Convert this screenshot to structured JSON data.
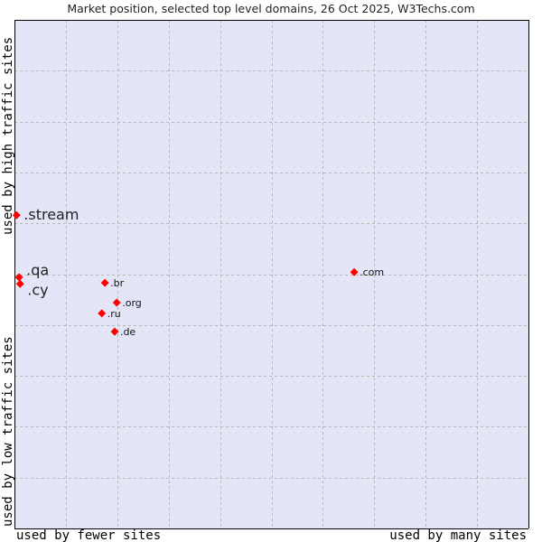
{
  "chart_data": {
    "type": "scatter",
    "title": "Market position, selected top level domains, 26 Oct 2025, W3Techs.com",
    "xlabel_left": "used by fewer sites",
    "xlabel_right": "used by many sites",
    "ylabel_bottom": "used by low traffic sites",
    "ylabel_top": "used by high traffic sites",
    "xlim": [
      0,
      100
    ],
    "ylim": [
      0,
      100
    ],
    "grid": true,
    "colors": {
      "plot_bg": "#e4e6f8",
      "point": "#ff0000"
    },
    "points": [
      {
        "label": ".stream",
        "x": 0.4,
        "y": 61.6,
        "emphasized": true
      },
      {
        "label": ".qa",
        "x": 0.9,
        "y": 49.4,
        "emphasized": true
      },
      {
        "label": ".cy",
        "x": 1.1,
        "y": 48.1,
        "emphasized": true
      },
      {
        "label": ".br",
        "x": 17.6,
        "y": 48.3,
        "emphasized": false
      },
      {
        "label": ".org",
        "x": 19.9,
        "y": 44.4,
        "emphasized": false
      },
      {
        "label": ".ru",
        "x": 17.0,
        "y": 42.3,
        "emphasized": false
      },
      {
        "label": ".de",
        "x": 19.5,
        "y": 38.7,
        "emphasized": false
      },
      {
        "label": ".com",
        "x": 66.1,
        "y": 50.4,
        "emphasized": false
      }
    ]
  }
}
